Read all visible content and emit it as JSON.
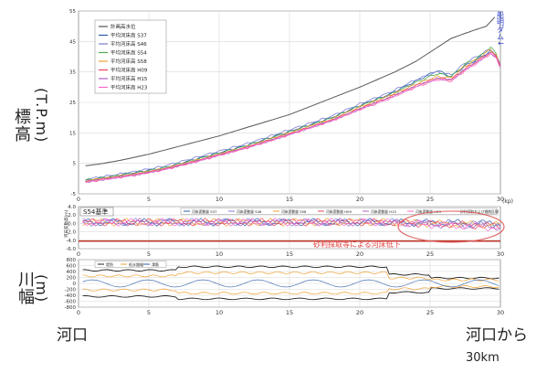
{
  "chart_data": [
    {
      "type": "line",
      "title": "",
      "ylabel_chars": [
        "標",
        "高"
      ],
      "ylabel_unit": "(T.P.m)",
      "xlabel": "",
      "x_unit": "(kp)",
      "xlim": [
        0,
        30
      ],
      "ylim": [
        -5,
        55
      ],
      "xticks": [
        "0",
        "5",
        "10",
        "15",
        "20",
        "25",
        "30"
      ],
      "yticks": [
        "-5",
        "5",
        "15",
        "25",
        "35",
        "45",
        "55"
      ],
      "grid": true,
      "legend_position": "top-left",
      "annotation": "船明ダム↓",
      "series": [
        {
          "name": "計画高水位",
          "color": "#555555",
          "x": [
            0.5,
            1.5,
            3,
            5,
            7.5,
            10,
            12.5,
            15,
            17.5,
            20,
            22.5,
            24,
            25.5,
            26.5,
            28,
            29,
            29.6
          ],
          "y": [
            4.2,
            4.8,
            6,
            8,
            11,
            14,
            17.5,
            21,
            25.5,
            30,
            35,
            38.5,
            43,
            46,
            48.5,
            50,
            53
          ]
        },
        {
          "name": "平均河床高 S37",
          "color": "#2a5caa",
          "x": [
            0.5,
            2,
            4,
            6,
            8,
            10,
            12,
            14,
            16,
            18,
            20,
            22,
            24,
            25.5,
            26.5,
            27.5,
            28.5,
            29.3,
            29.7,
            30
          ],
          "y": [
            -0.5,
            0.5,
            2,
            3.5,
            6,
            8.5,
            11,
            14,
            17,
            20,
            24,
            27.5,
            32,
            35.5,
            33.5,
            37,
            39.5,
            42,
            40,
            37
          ]
        },
        {
          "name": "平均河床高 S46",
          "color": "#7b7fd0",
          "x": [
            0.5,
            2,
            4,
            6,
            8,
            10,
            12,
            14,
            16,
            18,
            20,
            22,
            24,
            25.5,
            26.5,
            27.5,
            28.5,
            29.3,
            29.7,
            30
          ],
          "y": [
            -0.3,
            0.8,
            2.3,
            4,
            6.5,
            9,
            11.5,
            14.5,
            17.5,
            20.5,
            24.5,
            28,
            32.5,
            35,
            34,
            38,
            40.5,
            42.5,
            40.5,
            37
          ]
        },
        {
          "name": "平均河床高 S54",
          "color": "#4caf50",
          "x": [
            0.5,
            2,
            4,
            6,
            8,
            10,
            12,
            14,
            16,
            18,
            20,
            22,
            24,
            25.5,
            26.5,
            27.5,
            28.5,
            29.3,
            29.7,
            30
          ],
          "y": [
            -0.6,
            0.4,
            1.8,
            3.4,
            5.8,
            8.3,
            10.8,
            13.8,
            16.8,
            19.8,
            23.8,
            27.2,
            31.5,
            34.5,
            33.5,
            37.5,
            40,
            43,
            41,
            37
          ]
        },
        {
          "name": "平均河床高 S58",
          "color": "#f0a030",
          "x": [
            0.5,
            2,
            4,
            6,
            8,
            10,
            12,
            14,
            16,
            18,
            20,
            22,
            24,
            25.5,
            26.5,
            27.5,
            28.5,
            29.3,
            29.7,
            30
          ],
          "y": [
            -0.8,
            0.2,
            1.5,
            3.2,
            5.5,
            8,
            10.5,
            13.5,
            16.5,
            19.5,
            23.5,
            27,
            31,
            33.5,
            33,
            37,
            39.5,
            42.5,
            40.5,
            37
          ]
        },
        {
          "name": "平均河床高 H09",
          "color": "#e8455a",
          "x": [
            0.5,
            2,
            4,
            6,
            8,
            10,
            12,
            14,
            16,
            18,
            20,
            22,
            24,
            25.5,
            26.5,
            27.5,
            28.5,
            29.3,
            29.7,
            30
          ],
          "y": [
            -1,
            0,
            1.3,
            3,
            5.3,
            7.8,
            10.3,
            13.2,
            16.2,
            19.2,
            23,
            26.5,
            30.5,
            33,
            32.5,
            36,
            39,
            41.5,
            40,
            37
          ]
        },
        {
          "name": "平均河床高 H15",
          "color": "#b060c0",
          "x": [
            0.5,
            2,
            4,
            6,
            8,
            10,
            12,
            14,
            16,
            18,
            20,
            22,
            24,
            25.5,
            26.5,
            27.5,
            28.5,
            29.3,
            29.7,
            30
          ],
          "y": [
            -1.1,
            -0.1,
            1.2,
            2.9,
            5.2,
            7.7,
            10.2,
            13,
            16,
            19,
            22.8,
            26.3,
            30.3,
            32.8,
            32.3,
            35.8,
            38.8,
            41.3,
            39.8,
            37
          ]
        },
        {
          "name": "平均河床高 H23",
          "color": "#ff66cc",
          "x": [
            0.5,
            2,
            4,
            6,
            8,
            10,
            12,
            14,
            16,
            18,
            20,
            22,
            24,
            25.5,
            26.5,
            27.5,
            28.5,
            29.3,
            29.7,
            30
          ],
          "y": [
            -1.2,
            -0.2,
            1.1,
            2.8,
            5.1,
            7.6,
            10.1,
            12.9,
            15.9,
            18.9,
            22.6,
            26,
            30,
            32.5,
            32,
            35.5,
            38.5,
            41,
            39.5,
            36.5
          ]
        }
      ]
    },
    {
      "type": "line",
      "title": "S54基準",
      "ylabel": "河床変動高(m)",
      "xlim": [
        0,
        30
      ],
      "ylim": [
        -6,
        4
      ],
      "xticks": [
        "0",
        "5",
        "10",
        "15",
        "20",
        "25",
        "30"
      ],
      "yticks": [
        "4.0",
        "2.0",
        "0.0",
        "-2.0",
        "-4.0",
        "-6.0"
      ],
      "grid": true,
      "legend_position": "top",
      "annotation": "砂利採取等による河床低下",
      "series": [
        {
          "name": "河床変動量 S37",
          "color": "#2a5caa"
        },
        {
          "name": "河床変動量 S46",
          "color": "#7b7fd0"
        },
        {
          "name": "河床変動量 S58",
          "color": "#f0a030"
        },
        {
          "name": "河床変動量 H09",
          "color": "#e8455a"
        },
        {
          "name": "河床変動量 H15",
          "color": "#b060c0"
        },
        {
          "name": "河床変動量 H23",
          "color": "#ff66cc"
        },
        {
          "name": "砂利採取および掘削区間",
          "color": "#c0392b"
        }
      ]
    },
    {
      "type": "line",
      "title": "",
      "ylabel_chars": [
        "川",
        "幅"
      ],
      "ylabel_unit": "(m)",
      "xlim": [
        0,
        30
      ],
      "ylim": [
        -800,
        800
      ],
      "xticks": [
        "0",
        "5",
        "10",
        "15",
        "20",
        "25",
        "30"
      ],
      "yticks": [
        "800",
        "600",
        "400",
        "200",
        "0",
        "-200",
        "-400",
        "-600",
        "-800"
      ],
      "grid": true,
      "legend_position": "top-left",
      "series": [
        {
          "name": "堤防",
          "color": "#222222"
        },
        {
          "name": "低水路幅",
          "color": "#f0a030"
        },
        {
          "name": "澪筋",
          "color": "#2a5caa"
        }
      ]
    }
  ],
  "bottom": {
    "left_label": "河口",
    "right_label_line1": "河口から",
    "right_label_line2": "30km"
  }
}
